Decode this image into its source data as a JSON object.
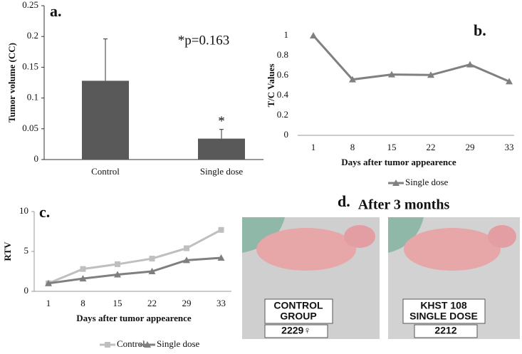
{
  "chart_data": [
    {
      "type": "bar",
      "panel_label": "a.",
      "y_label": "Tumor volume (CC)",
      "categories": [
        "Control",
        "Single dose"
      ],
      "values": [
        0.128,
        0.034
      ],
      "errors": [
        0.068,
        0.015
      ],
      "color": "#595959",
      "ylim": [
        0,
        0.25
      ],
      "yticks": [
        0,
        0.05,
        0.1,
        0.15,
        0.2,
        0.25
      ],
      "annotations": [
        "*p=0.163",
        "*"
      ]
    },
    {
      "type": "line",
      "panel_label": "b.",
      "y_label": "T/C Values",
      "x_label": "Days after tumor appearence",
      "categories": [
        "1",
        "8",
        "15",
        "22",
        "29",
        "33"
      ],
      "series": [
        {
          "name": "Single dose",
          "color": "#808080",
          "marker": "triangle",
          "values": [
            1,
            0.56,
            0.61,
            0.605,
            0.71,
            0.54
          ]
        }
      ],
      "ylim": [
        0,
        1
      ],
      "yticks": [
        0,
        0.2,
        0.4,
        0.6,
        0.8,
        1
      ]
    },
    {
      "type": "line",
      "panel_label": "c.",
      "y_label": "RTV",
      "x_label": "Days after tumor appearence",
      "categories": [
        "1",
        "8",
        "15",
        "22",
        "29",
        "33"
      ],
      "series": [
        {
          "name": "Control",
          "color": "#bfbfbf",
          "marker": "square",
          "values": [
            1,
            2.8,
            3.4,
            4.1,
            5.4,
            7.7
          ]
        },
        {
          "name": "Single dose",
          "color": "#7f7f7f",
          "marker": "triangle",
          "values": [
            1,
            1.6,
            2.1,
            2.5,
            3.9,
            4.2
          ]
        }
      ],
      "ylim": [
        0,
        10
      ],
      "yticks": [
        0,
        5,
        10
      ]
    }
  ],
  "photo_panel": {
    "label": "d.",
    "title": "After 3 months",
    "photos": [
      {
        "card_lines": [
          "CONTROL",
          "GROUP"
        ],
        "number": "2229♀"
      },
      {
        "card_lines": [
          "KHST 108",
          "SINGLE DOSE"
        ],
        "number": "2212"
      }
    ]
  }
}
